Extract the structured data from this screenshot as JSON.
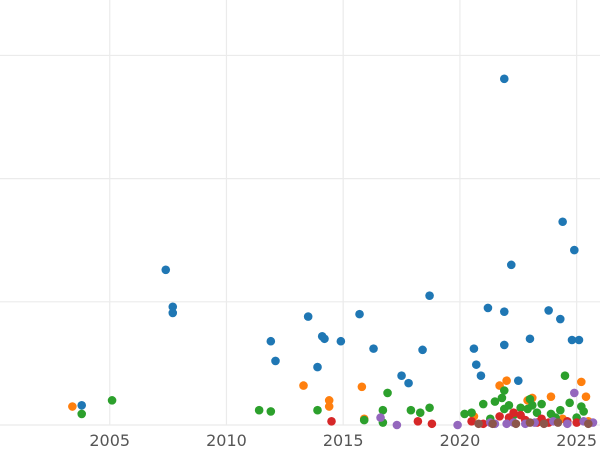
{
  "chart_data": {
    "type": "scatter",
    "title": "",
    "xlabel": "",
    "ylabel": "",
    "xlim": [
      2000.3,
      2026.0
    ],
    "ylim": [
      0,
      3.45
    ],
    "x_ticks": [
      2005,
      2010,
      2015,
      2020,
      2025
    ],
    "x_tick_labels": [
      "2005",
      "2010",
      "2015",
      "2020",
      "2025"
    ],
    "y_gridlines": [
      0,
      1,
      2,
      3
    ],
    "grid": true,
    "legend": "none",
    "series": [
      {
        "color": "#1f77b4",
        "points": [
          [
            2003.8,
            0.16
          ],
          [
            2007.4,
            1.26
          ],
          [
            2007.7,
            0.96
          ],
          [
            2007.7,
            0.91
          ],
          [
            2011.9,
            0.68
          ],
          [
            2012.1,
            0.52
          ],
          [
            2013.5,
            0.88
          ],
          [
            2013.9,
            0.47
          ],
          [
            2014.1,
            0.72
          ],
          [
            2014.2,
            0.7
          ],
          [
            2014.9,
            0.68
          ],
          [
            2015.7,
            0.9
          ],
          [
            2016.3,
            0.62
          ],
          [
            2017.5,
            0.4
          ],
          [
            2017.8,
            0.34
          ],
          [
            2018.4,
            0.61
          ],
          [
            2018.7,
            1.05
          ],
          [
            2020.6,
            0.62
          ],
          [
            2020.7,
            0.49
          ],
          [
            2020.9,
            0.4
          ],
          [
            2021.2,
            0.95
          ],
          [
            2021.9,
            2.81
          ],
          [
            2021.9,
            0.92
          ],
          [
            2021.9,
            0.65
          ],
          [
            2022.2,
            1.3
          ],
          [
            2022.5,
            0.36
          ],
          [
            2023.0,
            0.7
          ],
          [
            2023.8,
            0.93
          ],
          [
            2024.3,
            0.86
          ],
          [
            2024.4,
            1.65
          ],
          [
            2024.8,
            0.69
          ],
          [
            2024.9,
            1.42
          ],
          [
            2025.1,
            0.69
          ]
        ]
      },
      {
        "color": "#ff7f0e",
        "points": [
          [
            2003.4,
            0.15
          ],
          [
            2013.3,
            0.32
          ],
          [
            2014.4,
            0.2
          ],
          [
            2014.4,
            0.15
          ],
          [
            2015.8,
            0.31
          ],
          [
            2015.9,
            0.05
          ],
          [
            2020.6,
            0.07
          ],
          [
            2021.7,
            0.32
          ],
          [
            2022.0,
            0.36
          ],
          [
            2022.9,
            0.2
          ],
          [
            2023.1,
            0.22
          ],
          [
            2023.9,
            0.23
          ],
          [
            2024.4,
            0.05
          ],
          [
            2025.2,
            0.35
          ],
          [
            2025.4,
            0.23
          ],
          [
            2025.5,
            0.03
          ]
        ]
      },
      {
        "color": "#2ca02c",
        "points": [
          [
            2003.8,
            0.09
          ],
          [
            2005.1,
            0.2
          ],
          [
            2011.4,
            0.12
          ],
          [
            2011.9,
            0.11
          ],
          [
            2013.9,
            0.12
          ],
          [
            2015.9,
            0.04
          ],
          [
            2016.7,
            0.12
          ],
          [
            2016.7,
            0.02
          ],
          [
            2016.9,
            0.26
          ],
          [
            2017.9,
            0.12
          ],
          [
            2018.3,
            0.1
          ],
          [
            2018.7,
            0.14
          ],
          [
            2020.2,
            0.09
          ],
          [
            2020.5,
            0.1
          ],
          [
            2021.0,
            0.17
          ],
          [
            2021.3,
            0.05
          ],
          [
            2021.5,
            0.19
          ],
          [
            2021.8,
            0.22
          ],
          [
            2021.9,
            0.28
          ],
          [
            2021.9,
            0.13
          ],
          [
            2022.1,
            0.16
          ],
          [
            2022.3,
            0.08
          ],
          [
            2022.6,
            0.14
          ],
          [
            2022.9,
            0.13
          ],
          [
            2023.0,
            0.21
          ],
          [
            2023.1,
            0.16
          ],
          [
            2023.3,
            0.1
          ],
          [
            2023.5,
            0.17
          ],
          [
            2023.9,
            0.09
          ],
          [
            2024.1,
            0.06
          ],
          [
            2024.3,
            0.12
          ],
          [
            2024.5,
            0.4
          ],
          [
            2024.7,
            0.18
          ],
          [
            2025.0,
            0.06
          ],
          [
            2025.2,
            0.15
          ],
          [
            2025.3,
            0.11
          ]
        ]
      },
      {
        "color": "#d62728",
        "points": [
          [
            2014.5,
            0.03
          ],
          [
            2018.2,
            0.03
          ],
          [
            2018.8,
            0.01
          ],
          [
            2020.5,
            0.03
          ],
          [
            2021.0,
            0.01
          ],
          [
            2021.7,
            0.07
          ],
          [
            2022.1,
            0.06
          ],
          [
            2022.3,
            0.1
          ],
          [
            2022.6,
            0.08
          ],
          [
            2022.8,
            0.04
          ],
          [
            2023.3,
            0.02
          ],
          [
            2023.5,
            0.05
          ],
          [
            2023.8,
            0.02
          ],
          [
            2024.6,
            0.03
          ],
          [
            2025.0,
            0.02
          ]
        ]
      },
      {
        "color": "#9467bd",
        "points": [
          [
            2016.6,
            0.06
          ],
          [
            2017.3,
            0.0
          ],
          [
            2019.9,
            0.0
          ],
          [
            2021.3,
            0.02
          ],
          [
            2021.5,
            0.01
          ],
          [
            2022.0,
            0.01
          ],
          [
            2022.3,
            0.02
          ],
          [
            2022.8,
            0.01
          ],
          [
            2023.2,
            0.02
          ],
          [
            2024.0,
            0.03
          ],
          [
            2024.6,
            0.01
          ],
          [
            2024.9,
            0.26
          ],
          [
            2025.3,
            0.03
          ],
          [
            2025.7,
            0.02
          ]
        ]
      },
      {
        "color": "#8c564b",
        "points": [
          [
            2020.8,
            0.01
          ],
          [
            2021.4,
            0.01
          ],
          [
            2022.4,
            0.01
          ],
          [
            2023.0,
            0.02
          ],
          [
            2023.6,
            0.01
          ],
          [
            2024.2,
            0.02
          ],
          [
            2025.5,
            0.01
          ]
        ]
      }
    ]
  }
}
